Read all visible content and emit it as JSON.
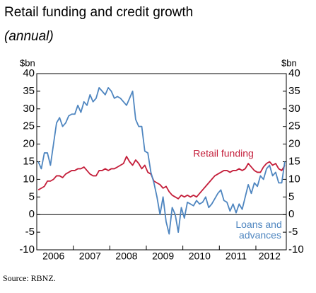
{
  "chart_data": {
    "type": "line",
    "title": "Retail funding and credit growth",
    "subtitle": "(annual)",
    "y_unit": "$bn",
    "y2_unit": "$bn",
    "source": "Source: RBNZ.",
    "categories": [
      null,
      null,
      null,
      null,
      null,
      "2006",
      null,
      null,
      null,
      null,
      null,
      null,
      null,
      null,
      null,
      null,
      null,
      "2007",
      null,
      null,
      null,
      null,
      null,
      null,
      null,
      null,
      null,
      null,
      null,
      "2008",
      null,
      null,
      null,
      null,
      null,
      null,
      null,
      null,
      null,
      null,
      null,
      "2009",
      null,
      null,
      null,
      null,
      null,
      null,
      null,
      null,
      null,
      null,
      null,
      "2010",
      null,
      null,
      null,
      null,
      null,
      null,
      null,
      null,
      null,
      null,
      null,
      "2011",
      null,
      null,
      null,
      null,
      null,
      null,
      null,
      null,
      null,
      null,
      "2012",
      null,
      null,
      null,
      null,
      null
    ],
    "series": [
      {
        "name": "Retail funding",
        "color": "#c41e3a",
        "axis": "y",
        "values": [
          7,
          7.5,
          8,
          9.5,
          9.5,
          10,
          11,
          11,
          10.5,
          11.5,
          12,
          12.5,
          12.5,
          13,
          13,
          13.5,
          12.5,
          11.5,
          11,
          11,
          12.5,
          12.5,
          13,
          12.5,
          13,
          13,
          13.5,
          14,
          14.5,
          16.5,
          15,
          14,
          15.5,
          14.5,
          13,
          14,
          12,
          11.5,
          9.5,
          9,
          8.5,
          7.5,
          8,
          6.5,
          5.5,
          5,
          4.5,
          5.5,
          5,
          5.5,
          5,
          5.5,
          5,
          6,
          7,
          8,
          9,
          10,
          11,
          11.5,
          12,
          12.5,
          12.5,
          12,
          12.5,
          12.5,
          13,
          12.5,
          13,
          14.5,
          13.5,
          12.5,
          12,
          12,
          13.5,
          14.5,
          15,
          14,
          14.5,
          13,
          12.5,
          14
        ]
      },
      {
        "name": "Loans and advances",
        "color": "#4f86c0",
        "axis": "y",
        "values": [
          15,
          13,
          17.5,
          17.5,
          14,
          20,
          26,
          27.5,
          25,
          26,
          28,
          28.5,
          28.5,
          31,
          29,
          32,
          31,
          34,
          32,
          33,
          36,
          35,
          34,
          36,
          35,
          33,
          33.5,
          33,
          32,
          31,
          33,
          35,
          27,
          25,
          25,
          18,
          17.5,
          12,
          9,
          5,
          0,
          5,
          -2,
          -5.5,
          2,
          0,
          -5,
          2,
          -1,
          3.5,
          3,
          2.5,
          4,
          3,
          3.5,
          5,
          2,
          3,
          4.5,
          6,
          7,
          4,
          3.5,
          1,
          3,
          0.5,
          3,
          1.5,
          5,
          8.5,
          6,
          9,
          8,
          11,
          10,
          13,
          14,
          11,
          12,
          9,
          9,
          15
        ]
      }
    ],
    "ylim": [
      -10,
      40
    ],
    "yticks": [
      -10,
      -5,
      0,
      5,
      10,
      15,
      20,
      25,
      30,
      35,
      40
    ],
    "y2lim": [
      -10,
      40
    ],
    "y2ticks": [
      -10,
      -5,
      0,
      5,
      10,
      15,
      20,
      25,
      30,
      35,
      40
    ],
    "grid": false
  }
}
